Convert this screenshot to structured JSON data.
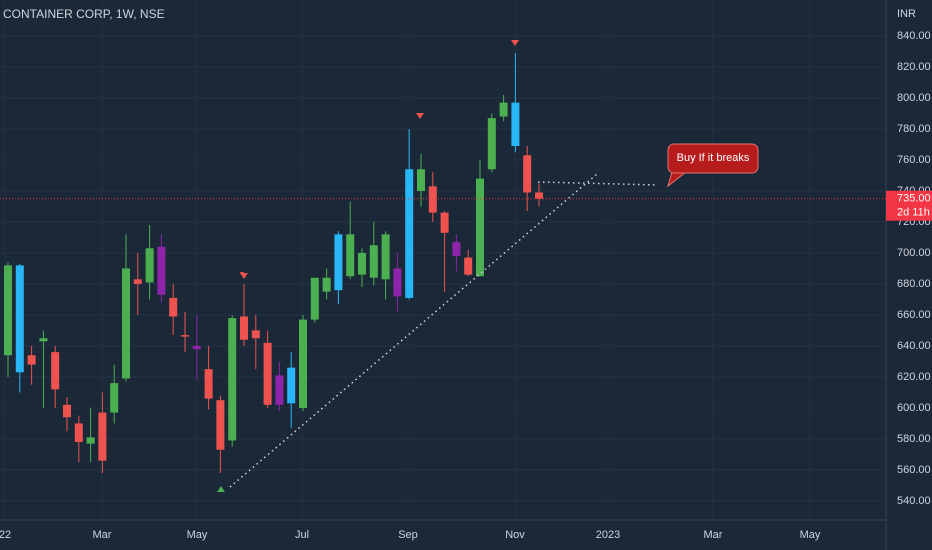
{
  "chart_data": {
    "type": "candlestick",
    "title": "CONTAINER CORP, 1W, NSE",
    "y_axis_label": "INR",
    "annotation": "Buy If it breaks",
    "x_axis_labels": [
      "22",
      "Mar",
      "May",
      "Jul",
      "Sep",
      "Nov",
      "2023",
      "Mar",
      "May"
    ],
    "ylim": [
      527.7,
      863.2
    ],
    "yticks": [
      {
        "value": 540,
        "label": "540.00"
      },
      {
        "value": 560,
        "label": "560.00"
      },
      {
        "value": 580,
        "label": "580.00"
      },
      {
        "value": 600,
        "label": "600.00"
      },
      {
        "value": 620,
        "label": "620.00"
      },
      {
        "value": 640,
        "label": "640.00"
      },
      {
        "value": 660,
        "label": "660.00"
      },
      {
        "value": 680,
        "label": "680.00"
      },
      {
        "value": 700,
        "label": "700.00"
      },
      {
        "value": 720,
        "label": "720.00"
      },
      {
        "value": 740,
        "label": "740.00"
      },
      {
        "value": 760,
        "label": "760.00"
      },
      {
        "value": 780,
        "label": "780.00"
      },
      {
        "value": 800,
        "label": "800.00"
      },
      {
        "value": 820,
        "label": "820.00"
      },
      {
        "value": 840,
        "label": "840.00"
      }
    ],
    "grid": true,
    "price_line": {
      "value": 735,
      "label": "735.00",
      "countdown": "2d 11h",
      "color": "#f23645"
    },
    "candles": {
      "open": [
        634,
        692,
        634,
        643,
        636,
        602,
        590,
        577,
        597,
        597,
        619,
        683,
        681,
        704,
        671,
        647,
        640,
        625,
        605,
        579,
        659,
        650,
        642,
        621,
        603,
        600,
        657,
        675,
        676,
        685,
        686,
        684,
        683,
        690,
        671,
        740,
        743,
        726,
        707,
        697,
        685,
        754,
        788,
        797,
        763,
        739
      ],
      "high": [
        694,
        693,
        640,
        650,
        640,
        607,
        595,
        600,
        610,
        628,
        712,
        700,
        718,
        712,
        680,
        662,
        660,
        640,
        608,
        660,
        680,
        660,
        650,
        630,
        636,
        660,
        684,
        690,
        714,
        733,
        703,
        720,
        714,
        700,
        780,
        764,
        752,
        727,
        712,
        702,
        760,
        790,
        802,
        829,
        769,
        745
      ],
      "low": [
        620,
        610,
        615,
        600,
        600,
        585,
        565,
        565,
        558,
        590,
        617,
        660,
        670,
        668,
        647,
        636,
        618,
        599,
        558,
        575,
        640,
        625,
        600,
        598,
        587,
        598,
        655,
        670,
        667,
        683,
        678,
        679,
        670,
        662,
        670,
        730,
        720,
        675,
        688,
        685,
        685,
        752,
        785,
        765,
        727,
        730
      ],
      "close": [
        692,
        623,
        628,
        645,
        612,
        594,
        578,
        581,
        566,
        616,
        690,
        680,
        703,
        673,
        659,
        646,
        638,
        606,
        573,
        658,
        644,
        645,
        602,
        602,
        626,
        657,
        684,
        684,
        712,
        712,
        700,
        705,
        712,
        672,
        754,
        754,
        726,
        713,
        698,
        686,
        748,
        787,
        797,
        769,
        739,
        735
      ],
      "colors": [
        "#4caf50",
        "#29b6f6",
        "#ef5350",
        "#4caf50",
        "#ef5350",
        "#ef5350",
        "#ef5350",
        "#4caf50",
        "#ef5350",
        "#4caf50",
        "#4caf50",
        "#ef5350",
        "#4caf50",
        "#8e24aa",
        "#ef5350",
        "#ef5350",
        "#8e24aa",
        "#ef5350",
        "#ef5350",
        "#4caf50",
        "#ef5350",
        "#ef5350",
        "#ef5350",
        "#8e24aa",
        "#29b6f6",
        "#4caf50",
        "#4caf50",
        "#4caf50",
        "#29b6f6",
        "#4caf50",
        "#4caf50",
        "#4caf50",
        "#4caf50",
        "#8e24aa",
        "#29b6f6",
        "#4caf50",
        "#ef5350",
        "#ef5350",
        "#8e24aa",
        "#ef5350",
        "#4caf50",
        "#4caf50",
        "#4caf50",
        "#29b6f6",
        "#ef5350",
        "#ef5350"
      ]
    }
  }
}
